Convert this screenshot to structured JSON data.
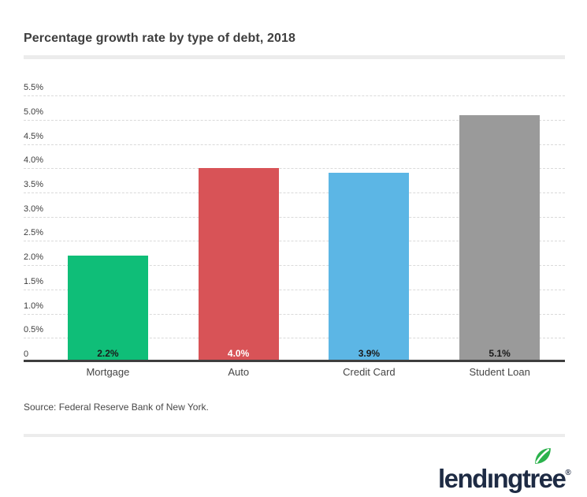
{
  "header": {
    "title": "Percentage growth rate by type of debt, 2018"
  },
  "chart_data": {
    "type": "bar",
    "title": "Percentage growth rate by type of debt, 2018",
    "categories": [
      "Mortgage",
      "Auto",
      "Credit Card",
      "Student Loan"
    ],
    "values": [
      2.2,
      4.0,
      3.9,
      5.1
    ],
    "value_labels": [
      "2.2%",
      "4.0%",
      "3.9%",
      "5.1%"
    ],
    "bar_colors": [
      "#0fbe78",
      "#d85357",
      "#5cb6e5",
      "#9a9a9a"
    ],
    "value_label_colors": [
      "#1a1a1a",
      "#ffffff",
      "#1a1a1a",
      "#1a1a1a"
    ],
    "xlabel": "",
    "ylabel": "",
    "ylim": [
      0,
      5.5
    ],
    "y_tick_values": [
      0,
      0.5,
      1.0,
      1.5,
      2.0,
      2.5,
      3.0,
      3.5,
      4.0,
      4.5,
      5.0,
      5.5
    ],
    "y_tick_labels": [
      "0",
      "0.5%",
      "1.0%",
      "1.5%",
      "2.0%",
      "2.5%",
      "3.0%",
      "3.5%",
      "4.0%",
      "4.5%",
      "5.0%",
      "5.5%"
    ],
    "grid": "horizontal-dotted",
    "legend": "none",
    "value_labels_position": "inside-bottom"
  },
  "footer": {
    "source": "Source: Federal Reserve Bank of New York."
  },
  "logo": {
    "text_before_i": "lend",
    "dotless_i": "ı",
    "text_after_i": "ngtree",
    "registered": "®",
    "text_color": "#1e2b44",
    "leaf_color": "#2bb24c"
  }
}
